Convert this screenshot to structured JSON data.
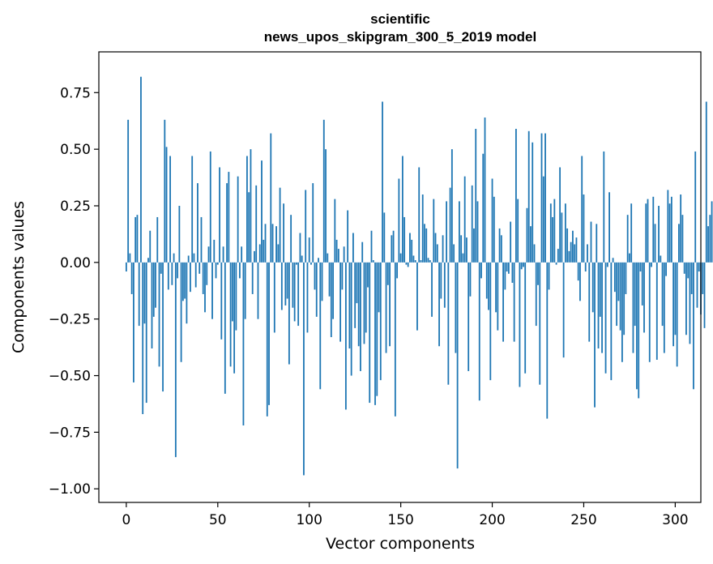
{
  "chart_data": {
    "type": "bar",
    "title_line1": "scientific",
    "title_line2": "news_upos_skipgram_300_5_2019 model",
    "xlabel": "Vector components",
    "ylabel": "Components values",
    "xlim": [
      -15,
      314
    ],
    "ylim": [
      -1.06,
      0.93
    ],
    "x_ticks": [
      0,
      50,
      100,
      150,
      200,
      250,
      300
    ],
    "x_tick_labels": [
      "0",
      "50",
      "100",
      "150",
      "200",
      "250",
      "300"
    ],
    "y_ticks": [
      0.75,
      0.5,
      0.25,
      0.0,
      -0.25,
      -0.5,
      -0.75,
      -1.0
    ],
    "y_tick_labels": [
      "0.75",
      "0.50",
      "0.25",
      "0.00",
      "−0.25",
      "−0.50",
      "−0.75",
      "−1.00"
    ],
    "bar_color": "#1f77b4",
    "grid": false,
    "values": [
      -0.04,
      0.63,
      0.04,
      -0.14,
      -0.53,
      0.2,
      0.21,
      -0.28,
      0.82,
      -0.67,
      -0.27,
      -0.62,
      0.02,
      0.14,
      -0.38,
      -0.24,
      -0.2,
      0.2,
      -0.46,
      -0.05,
      -0.57,
      0.63,
      0.51,
      -0.12,
      0.47,
      -0.1,
      0.04,
      -0.86,
      -0.07,
      0.25,
      -0.44,
      -0.17,
      -0.16,
      -0.27,
      0.03,
      -0.13,
      0.47,
      0.04,
      -0.11,
      0.35,
      -0.05,
      0.2,
      -0.14,
      -0.22,
      -0.1,
      0.07,
      0.49,
      -0.25,
      0.1,
      -0.07,
      -0.01,
      0.42,
      -0.34,
      0.07,
      -0.58,
      0.35,
      0.4,
      -0.46,
      -0.26,
      -0.49,
      -0.3,
      0.38,
      -0.07,
      0.07,
      -0.72,
      -0.25,
      0.47,
      0.31,
      0.5,
      -0.14,
      0.05,
      0.34,
      -0.25,
      0.08,
      0.45,
      0.1,
      0.17,
      -0.68,
      -0.63,
      0.57,
      0.17,
      -0.31,
      0.16,
      0.08,
      0.33,
      -0.21,
      0.26,
      -0.19,
      -0.16,
      -0.45,
      0.21,
      -0.2,
      -0.26,
      -0.01,
      -0.28,
      0.13,
      0.03,
      -0.94,
      0.32,
      -0.31,
      0.11,
      -0.01,
      0.35,
      -0.12,
      -0.24,
      0.02,
      -0.56,
      -0.17,
      0.63,
      0.5,
      0.04,
      -0.15,
      -0.33,
      -0.25,
      0.28,
      0.1,
      0.06,
      -0.35,
      -0.12,
      0.07,
      -0.65,
      0.23,
      -0.38,
      -0.5,
      0.13,
      -0.29,
      -0.18,
      -0.37,
      -0.48,
      0.09,
      -0.36,
      -0.31,
      -0.11,
      -0.62,
      0.14,
      0.01,
      -0.63,
      -0.59,
      -0.22,
      -0.52,
      0.71,
      0.22,
      -0.4,
      -0.1,
      -0.37,
      0.12,
      0.14,
      -0.68,
      -0.07,
      0.37,
      0.04,
      0.47,
      0.2,
      -0.01,
      -0.02,
      0.13,
      0.1,
      0.03,
      0.01,
      -0.3,
      0.42,
      0.01,
      0.3,
      0.17,
      0.15,
      0.02,
      0.01,
      -0.24,
      0.28,
      0.13,
      0.08,
      -0.37,
      -0.16,
      0.12,
      -0.2,
      0.27,
      -0.54,
      0.33,
      0.5,
      0.08,
      -0.4,
      -0.91,
      0.27,
      0.12,
      0.04,
      0.38,
      0.11,
      -0.48,
      -0.15,
      0.34,
      0.15,
      0.59,
      0.27,
      -0.61,
      -0.07,
      0.48,
      0.64,
      -0.16,
      -0.21,
      -0.52,
      0.37,
      0.29,
      -0.22,
      -0.3,
      0.15,
      0.12,
      -0.35,
      -0.12,
      -0.04,
      -0.05,
      0.18,
      -0.09,
      -0.35,
      0.59,
      0.28,
      -0.55,
      -0.03,
      -0.02,
      -0.49,
      0.24,
      0.58,
      0.16,
      0.53,
      0.08,
      -0.28,
      -0.1,
      -0.54,
      0.57,
      0.38,
      0.57,
      -0.69,
      -0.12,
      0.26,
      0.2,
      0.28,
      -0.01,
      0.06,
      0.42,
      0.22,
      -0.42,
      0.26,
      0.15,
      0.05,
      0.09,
      0.14,
      0.08,
      0.11,
      -0.08,
      -0.17,
      0.47,
      0.3,
      -0.04,
      0.08,
      -0.35,
      0.18,
      -0.22,
      -0.64,
      0.17,
      -0.38,
      -0.24,
      -0.4,
      0.49,
      -0.49,
      -0.02,
      0.31,
      -0.52,
      0.02,
      -0.13,
      -0.28,
      -0.17,
      -0.3,
      -0.44,
      -0.32,
      -0.14,
      0.21,
      0.04,
      0.26,
      -0.4,
      -0.28,
      -0.56,
      -0.6,
      -0.04,
      -0.19,
      -0.31,
      0.26,
      0.28,
      -0.44,
      -0.02,
      0.29,
      0.17,
      -0.43,
      0.25,
      0.03,
      -0.28,
      -0.4,
      -0.06,
      0.32,
      0.26,
      0.29,
      -0.37,
      -0.32,
      -0.46,
      0.17,
      0.3,
      0.21,
      -0.05,
      -0.32,
      -0.07,
      -0.36,
      -0.14,
      -0.56,
      0.49,
      -0.2,
      -0.04,
      -0.23,
      -0.14,
      -0.29,
      0.71,
      0.16,
      0.21,
      0.27
    ]
  }
}
